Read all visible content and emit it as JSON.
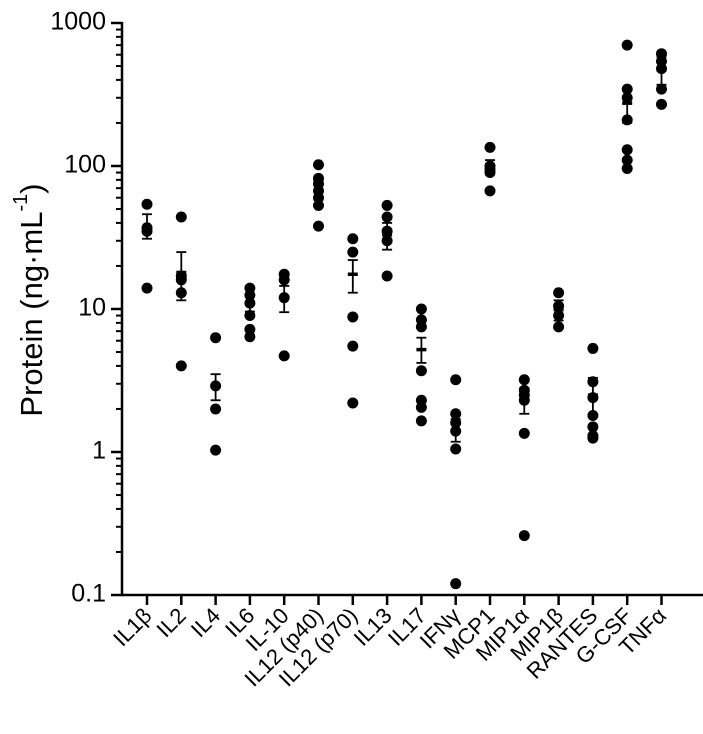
{
  "chart_data": {
    "type": "scatter",
    "ylabel": "Protein (ng·mL",
    "ylabel_superscript": "-1",
    "ylabel_suffix": ")",
    "yscale": "log",
    "ylim": [
      0.1,
      1000
    ],
    "yticks": [
      "0.1",
      "1",
      "10",
      "100",
      "1000"
    ],
    "categories": [
      "IL1β",
      "IL2",
      "IL4",
      "IL6",
      "IL-10",
      "IL12 (p40)",
      "IL12 (p70)",
      "IL13",
      "IL17",
      "IFNγ",
      "MCP1",
      "MIP1α",
      "MIP1β",
      "RANTES",
      "G-CSF",
      "TNFα"
    ],
    "points": [
      [
        54,
        37,
        35,
        14
      ],
      [
        44,
        17,
        16,
        13,
        4
      ],
      [
        6.3,
        2.9,
        2.0,
        1.03
      ],
      [
        14,
        12.5,
        11,
        9,
        7.2,
        6.4
      ],
      [
        17.5,
        16,
        12,
        4.7
      ],
      [
        102,
        82,
        75,
        67,
        60,
        53,
        38
      ],
      [
        31,
        25,
        8.8,
        5.5,
        2.2
      ],
      [
        53,
        44,
        35,
        30,
        17
      ],
      [
        10,
        8.4,
        7.5,
        3.7,
        2.3,
        2.05,
        1.65
      ],
      [
        3.2,
        1.85,
        1.6,
        1.4,
        1.05,
        0.12
      ],
      [
        135,
        100,
        95,
        90,
        67
      ],
      [
        3.2,
        2.7,
        2.5,
        2.3,
        1.35,
        0.26
      ],
      [
        13,
        10.5,
        9,
        7.5
      ],
      [
        5.3,
        3.1,
        2.4,
        1.8,
        1.5,
        1.3,
        1.25
      ],
      [
        700,
        345,
        300,
        210,
        130,
        110,
        96
      ],
      [
        610,
        540,
        480,
        345,
        270
      ]
    ],
    "mean": [
      36,
      18,
      2.9,
      10.8,
      12,
      68,
      17.5,
      33,
      5.2,
      1.4,
      98,
      2.3,
      9.9,
      2.5,
      275,
      470
    ],
    "error": [
      [
        31,
        46
      ],
      [
        11.5,
        25
      ],
      [
        2.3,
        3.5
      ],
      [
        9.6,
        12.2
      ],
      [
        9.5,
        14.5
      ],
      [
        58,
        79
      ],
      [
        13,
        22
      ],
      [
        26,
        40
      ],
      [
        4.2,
        6.3
      ],
      [
        1.18,
        1.7
      ],
      [
        87,
        110
      ],
      [
        1.85,
        2.8
      ],
      [
        8.3,
        11.5
      ],
      [
        1.8,
        3.3
      ],
      [
        200,
        350
      ],
      [
        370,
        580
      ]
    ],
    "grid": false,
    "legend": "none"
  }
}
